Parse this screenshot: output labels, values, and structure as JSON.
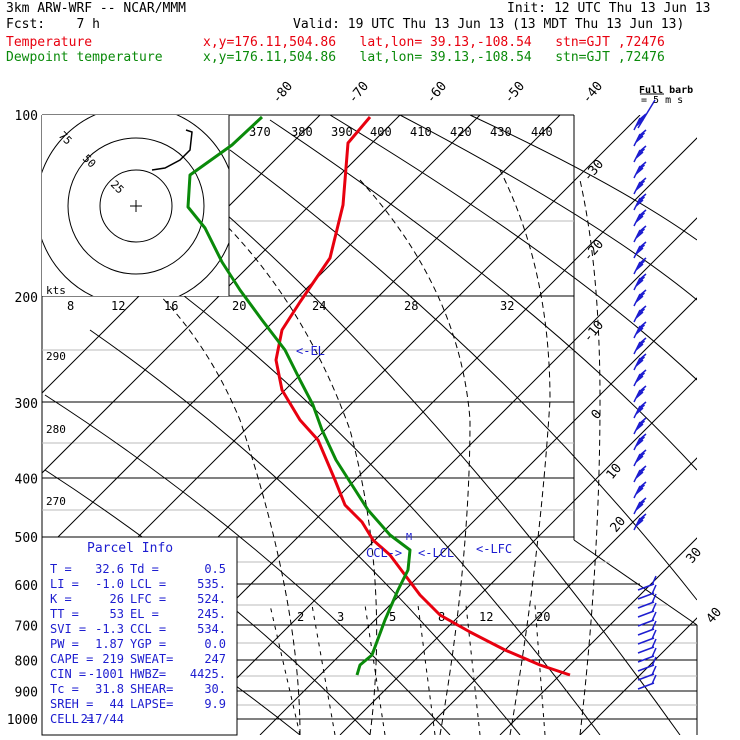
{
  "header": {
    "model": "3km ARW-WRF -- NCAR/MMM",
    "init": "Init: 12 UTC Thu 13 Jun 13",
    "fcst": "Fcst:    7 h",
    "valid": "Valid: 19 UTC Thu 13 Jun 13 (13 MDT Thu 13 Jun 13)",
    "temp_label": "Temperature",
    "temp_info": "x,y=176.11,504.86   lat,lon= 39.13,-108.54   stn=GJT ,72476",
    "dew_label": "Dewpoint temperature",
    "dew_info": "x,y=176.11,504.86   lat,lon= 39.13,-108.54   stn=GJT ,72476",
    "full_barb": "Full barb",
    "full_barb_unit": "= 5 m s"
  },
  "colors": {
    "temperature": "#e8000f",
    "dewpoint": "#0a8a0a",
    "barb": "#1d1dd0",
    "label_blue": "#1d1dd0",
    "grid": "#000000"
  },
  "chart_data": {
    "type": "line",
    "subtype": "skew-t log-p",
    "y_axis": {
      "label": "",
      "unit": "hPa",
      "scale": "log",
      "range": [
        1000,
        100
      ],
      "ticks": [
        100,
        200,
        300,
        400,
        500,
        600,
        700,
        800,
        900,
        1000
      ]
    },
    "isotherm_labels": [
      "-80",
      "-70",
      "-60",
      "-50",
      "-40",
      "-30",
      "-20",
      "-10",
      "0",
      "10",
      "20",
      "30",
      "40"
    ],
    "dry_adiabat_labels": [
      "370",
      "380",
      "390",
      "400",
      "410",
      "420",
      "430",
      "440",
      "290",
      "280",
      "270"
    ],
    "mixing_ratio_labels": [
      "2",
      "3",
      "5",
      "8",
      "12",
      "20"
    ],
    "hodograph": {
      "ring_labels": [
        "25",
        "50",
        "75"
      ],
      "unit_label": "kts",
      "speed_scale_labels": [
        "8",
        "12",
        "16",
        "20",
        "24",
        "28",
        "32"
      ]
    },
    "series": [
      {
        "name": "Temperature",
        "points": [
          {
            "p": 110,
            "y": 117
          },
          {
            "p": 130,
            "y": 143
          },
          {
            "p": 150,
            "y": 205
          },
          {
            "p": 175,
            "y": 258
          },
          {
            "p": 200,
            "y": 302
          },
          {
            "p": 215,
            "y": 330
          },
          {
            "p": 240,
            "y": 360
          },
          {
            "p": 280,
            "y": 390
          },
          {
            "p": 320,
            "y": 420
          },
          {
            "p": 350,
            "y": 440
          },
          {
            "p": 420,
            "y": 480
          },
          {
            "p": 470,
            "y": 505
          },
          {
            "p": 500,
            "y": 522
          },
          {
            "p": 530,
            "y": 540
          },
          {
            "p": 560,
            "y": 555
          },
          {
            "p": 600,
            "y": 575
          },
          {
            "p": 650,
            "y": 595
          },
          {
            "p": 700,
            "y": 615
          },
          {
            "p": 760,
            "y": 632
          },
          {
            "p": 800,
            "y": 650
          },
          {
            "p": 830,
            "y": 665
          },
          {
            "p": 870,
            "y": 675
          }
        ]
      },
      {
        "name": "Dewpoint temperature",
        "points": [
          {
            "p": 100,
            "y": 117
          },
          {
            "p": 120,
            "y": 145
          },
          {
            "p": 140,
            "y": 175
          },
          {
            "p": 155,
            "y": 207
          },
          {
            "p": 165,
            "y": 228
          },
          {
            "p": 180,
            "y": 262
          },
          {
            "p": 200,
            "y": 290
          },
          {
            "p": 220,
            "y": 320
          },
          {
            "p": 250,
            "y": 350
          },
          {
            "p": 290,
            "y": 380
          },
          {
            "p": 320,
            "y": 405
          },
          {
            "p": 350,
            "y": 430
          },
          {
            "p": 400,
            "y": 460
          },
          {
            "p": 450,
            "y": 485
          },
          {
            "p": 490,
            "y": 510
          },
          {
            "p": 520,
            "y": 535
          },
          {
            "p": 550,
            "y": 550
          },
          {
            "p": 580,
            "y": 570
          },
          {
            "p": 620,
            "y": 590
          },
          {
            "p": 680,
            "y": 620
          },
          {
            "p": 750,
            "y": 655
          },
          {
            "p": 800,
            "y": 665
          },
          {
            "p": 870,
            "y": 675
          }
        ]
      }
    ],
    "annotations": [
      "<-EL",
      "CCL->",
      "<-LCL",
      "<-LFC",
      "M"
    ]
  },
  "parcel_info": {
    "title": "Parcel Info",
    "rows": [
      {
        "k1": "T   =",
        "v1": "32.6",
        "k2": "Td  =",
        "v2": "0.5"
      },
      {
        "k1": "LI  =",
        "v1": "-1.0",
        "k2": "LCL =",
        "v2": "535."
      },
      {
        "k1": "K   =",
        "v1": "26",
        "k2": "LFC =",
        "v2": "524."
      },
      {
        "k1": "TT  =",
        "v1": "53",
        "k2": "EL  =",
        "v2": "245."
      },
      {
        "k1": "SVI =",
        "v1": "-1.3",
        "k2": "CCL =",
        "v2": "534."
      },
      {
        "k1": "PW  =",
        "v1": "1.87",
        "k2": "YGP =",
        "v2": "0.0"
      },
      {
        "k1": "CAPE =",
        "v1": "219",
        "k2": "SWEAT=",
        "v2": "247"
      },
      {
        "k1": "CIN  =",
        "v1": "-1001",
        "k2": "HWBZ=",
        "v2": "4425."
      },
      {
        "k1": "Tc  =",
        "v1": "31.8",
        "k2": "SHEAR=",
        "v2": "30."
      },
      {
        "k1": "SREH =",
        "v1": "44",
        "k2": "LAPSE=",
        "v2": "9.9"
      },
      {
        "k1": "CELL =",
        "v1": "217/44",
        "k2": "",
        "v2": ""
      }
    ]
  }
}
